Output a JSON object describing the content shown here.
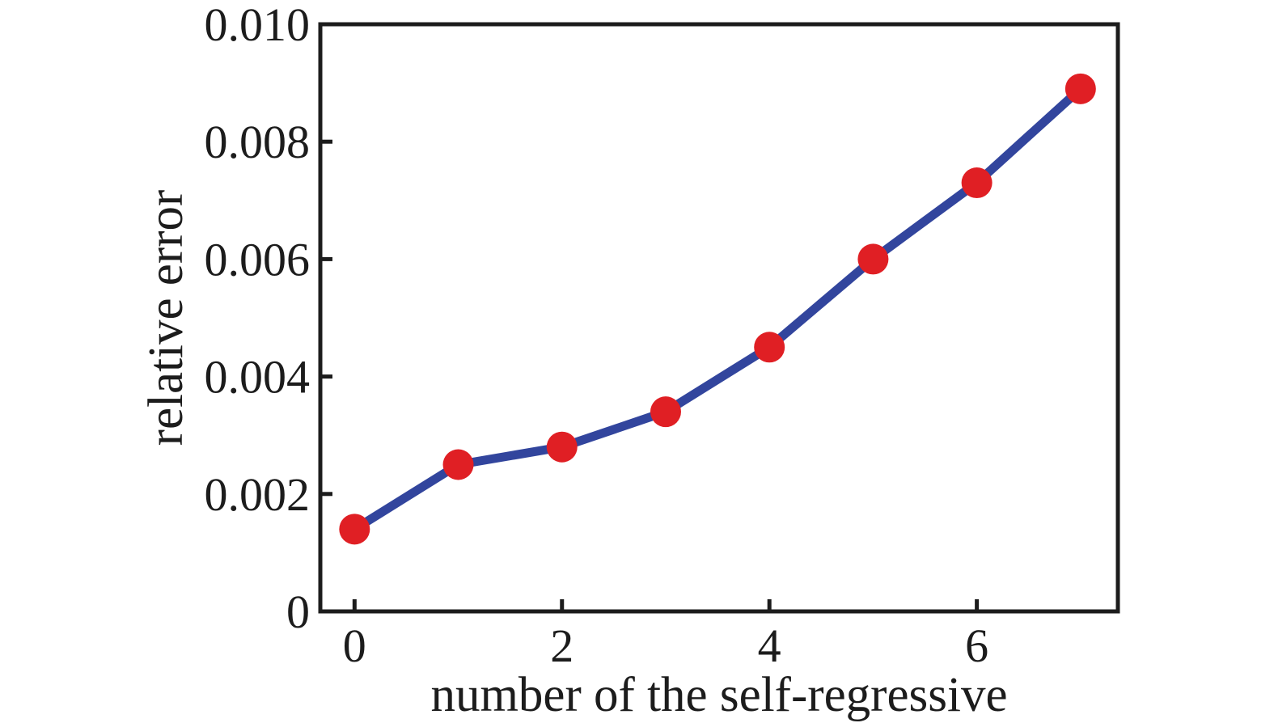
{
  "chart_data": {
    "type": "line",
    "title": "",
    "xlabel": "number of the self-regressive",
    "ylabel": "relative error",
    "x": [
      0,
      1,
      2,
      3,
      4,
      5,
      6,
      7
    ],
    "series": [
      {
        "name": "relative error",
        "values": [
          0.0014,
          0.0025,
          0.0028,
          0.0034,
          0.0045,
          0.006,
          0.0073,
          0.0089
        ]
      }
    ],
    "xlim": [
      -0.33,
      7.36
    ],
    "ylim": [
      0,
      0.01
    ],
    "x_ticks": [
      0,
      2,
      4,
      6
    ],
    "x_tick_labels": [
      "0",
      "2",
      "4",
      "6"
    ],
    "y_ticks": [
      0,
      0.002,
      0.004,
      0.006,
      0.008,
      0.01
    ],
    "y_tick_labels": [
      "0",
      "0.002",
      "0.004",
      "0.006",
      "0.008",
      "0.010"
    ],
    "grid": false,
    "legend_position": "none",
    "line_color": "#32459d",
    "marker_color": "#e01f24",
    "marker": "circle",
    "axis_color": "#1c1c1c"
  }
}
